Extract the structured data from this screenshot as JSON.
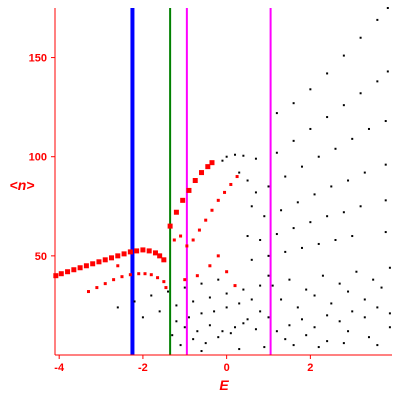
{
  "chart_data": {
    "type": "scatter",
    "xlabel": "E",
    "ylabel": "<n>",
    "xlim": [
      -4.1,
      3.95
    ],
    "ylim": [
      0,
      175
    ],
    "xticks": [
      -4,
      -2,
      0,
      2
    ],
    "yticks": [
      50,
      100,
      150
    ],
    "xtick_labels": [
      "-4",
      "-2",
      "0",
      "2"
    ],
    "ytick_labels": [
      "50",
      "100",
      "150"
    ],
    "grid": false,
    "vlines": [
      {
        "x": -2.25,
        "color": "#0000ff",
        "width": "thick"
      },
      {
        "x": -1.35,
        "color": "#008000",
        "width": "thin"
      },
      {
        "x": -0.95,
        "color": "#ff00ff",
        "width": "thin"
      },
      {
        "x": 1.05,
        "color": "#ff00ff",
        "width": "thin"
      }
    ],
    "series": [
      {
        "color": "#ff0000",
        "marker": "large square",
        "points": [
          [
            -4.08,
            40
          ],
          [
            -3.95,
            41
          ],
          [
            -3.8,
            42
          ],
          [
            -3.65,
            43
          ],
          [
            -3.5,
            44
          ],
          [
            -3.35,
            45
          ],
          [
            -3.2,
            46
          ],
          [
            -3.05,
            47
          ],
          [
            -2.9,
            48
          ],
          [
            -2.75,
            49
          ],
          [
            -2.6,
            50
          ],
          [
            -2.45,
            51
          ],
          [
            -2.3,
            52
          ],
          [
            -2.15,
            52.5
          ],
          [
            -2.0,
            53
          ],
          [
            -1.85,
            52.5
          ],
          [
            -1.7,
            51.5
          ],
          [
            -1.6,
            50
          ],
          [
            -1.5,
            48
          ],
          [
            -1.35,
            65
          ],
          [
            -1.2,
            72
          ],
          [
            -1.05,
            78
          ],
          [
            -0.9,
            83
          ],
          [
            -0.75,
            88
          ],
          [
            -0.6,
            92
          ],
          [
            -0.45,
            95
          ],
          [
            -0.35,
            97
          ]
        ]
      },
      {
        "color": "#ff0000",
        "marker": "small square",
        "points": [
          [
            -3.3,
            32
          ],
          [
            -3.1,
            34
          ],
          [
            -2.9,
            36
          ],
          [
            -2.7,
            38
          ],
          [
            -2.5,
            39.5
          ],
          [
            -2.3,
            40.5
          ],
          [
            -2.1,
            41
          ],
          [
            -1.95,
            41
          ],
          [
            -1.8,
            40.5
          ],
          [
            -1.65,
            39
          ],
          [
            -1.5,
            37
          ],
          [
            -1.25,
            58
          ],
          [
            -1.1,
            60
          ],
          [
            -0.95,
            55
          ],
          [
            -0.8,
            58
          ],
          [
            -0.65,
            63
          ],
          [
            -0.5,
            68
          ],
          [
            -0.35,
            73
          ],
          [
            -0.2,
            78
          ],
          [
            -0.05,
            82
          ],
          [
            0.1,
            86
          ],
          [
            0.25,
            90
          ],
          [
            -1.0,
            38
          ],
          [
            -0.7,
            40
          ],
          [
            -0.4,
            45
          ],
          [
            -0.2,
            50
          ],
          [
            0.0,
            42
          ],
          [
            0.2,
            35
          ],
          [
            -1.45,
            34
          ],
          [
            -2.6,
            45
          ]
        ]
      },
      {
        "color": "#000000",
        "marker": "dot",
        "points": [
          [
            1.2,
            122
          ],
          [
            1.6,
            127
          ],
          [
            2.0,
            134
          ],
          [
            2.4,
            142
          ],
          [
            2.8,
            151
          ],
          [
            3.2,
            160
          ],
          [
            3.6,
            169
          ],
          [
            3.85,
            175
          ],
          [
            1.2,
            102
          ],
          [
            1.6,
            108
          ],
          [
            2.0,
            114
          ],
          [
            2.4,
            120
          ],
          [
            2.8,
            126
          ],
          [
            3.2,
            132
          ],
          [
            3.6,
            138
          ],
          [
            3.85,
            143
          ],
          [
            1.0,
            85
          ],
          [
            1.4,
            90
          ],
          [
            1.8,
            95
          ],
          [
            2.2,
            100
          ],
          [
            2.6,
            104
          ],
          [
            3.0,
            109
          ],
          [
            3.4,
            114
          ],
          [
            3.8,
            118
          ],
          [
            0.9,
            70
          ],
          [
            1.3,
            73
          ],
          [
            1.7,
            77
          ],
          [
            2.1,
            81
          ],
          [
            2.5,
            85
          ],
          [
            2.9,
            88
          ],
          [
            3.3,
            92
          ],
          [
            3.8,
            96
          ],
          [
            0.8,
            58
          ],
          [
            1.2,
            61
          ],
          [
            1.6,
            64
          ],
          [
            2.0,
            67
          ],
          [
            2.4,
            70
          ],
          [
            2.8,
            72
          ],
          [
            3.2,
            75
          ],
          [
            3.8,
            78
          ],
          [
            0.6,
            48
          ],
          [
            1.0,
            50
          ],
          [
            1.4,
            52
          ],
          [
            1.8,
            54
          ],
          [
            2.2,
            56
          ],
          [
            2.6,
            58
          ],
          [
            3.0,
            60
          ],
          [
            3.8,
            62
          ],
          [
            0.0,
            100
          ],
          [
            0.2,
            101
          ],
          [
            0.4,
            100.5
          ],
          [
            0.7,
            99
          ],
          [
            -0.1,
            98
          ],
          [
            -2.6,
            24
          ],
          [
            -2.2,
            27
          ],
          [
            -1.8,
            30
          ],
          [
            -1.4,
            32
          ],
          [
            -1.0,
            34
          ],
          [
            -0.6,
            36
          ],
          [
            -0.2,
            38
          ],
          [
            -2.0,
            19
          ],
          [
            -1.6,
            22
          ],
          [
            -1.2,
            25
          ],
          [
            -0.8,
            27
          ],
          [
            -0.4,
            29
          ],
          [
            0.0,
            31
          ],
          [
            0.4,
            33
          ],
          [
            -1.2,
            17
          ],
          [
            -0.9,
            19
          ],
          [
            -0.6,
            21
          ],
          [
            -0.3,
            22
          ],
          [
            0.0,
            24
          ],
          [
            0.3,
            26
          ],
          [
            0.6,
            28
          ],
          [
            -1.0,
            14
          ],
          [
            -0.7,
            12
          ],
          [
            -0.4,
            15
          ],
          [
            -0.1,
            12
          ],
          [
            0.2,
            14
          ],
          [
            0.5,
            18
          ],
          [
            0.8,
            22
          ],
          [
            -0.8,
            8
          ],
          [
            -0.5,
            6
          ],
          [
            -0.2,
            9
          ],
          [
            0.1,
            11
          ],
          [
            0.4,
            16
          ],
          [
            0.7,
            13
          ],
          [
            1.0,
            19
          ],
          [
            1.2,
            12
          ],
          [
            1.5,
            15
          ],
          [
            1.8,
            18
          ],
          [
            2.1,
            14
          ],
          [
            2.4,
            20
          ],
          [
            2.7,
            17
          ],
          [
            3.0,
            22
          ],
          [
            3.3,
            19
          ],
          [
            3.6,
            24
          ],
          [
            3.9,
            21
          ],
          [
            1.3,
            28
          ],
          [
            1.7,
            24
          ],
          [
            2.1,
            30
          ],
          [
            2.5,
            26
          ],
          [
            2.9,
            32
          ],
          [
            3.3,
            28
          ],
          [
            3.7,
            34
          ],
          [
            1.1,
            35
          ],
          [
            1.5,
            38
          ],
          [
            1.9,
            33
          ],
          [
            2.3,
            40
          ],
          [
            2.7,
            36
          ],
          [
            3.1,
            42
          ],
          [
            3.5,
            38
          ],
          [
            3.9,
            44
          ],
          [
            1.4,
            8
          ],
          [
            1.9,
            10
          ],
          [
            2.4,
            7
          ],
          [
            2.9,
            12
          ],
          [
            3.4,
            9
          ],
          [
            3.9,
            14
          ],
          [
            1.6,
            5
          ],
          [
            2.2,
            4
          ],
          [
            2.8,
            6
          ],
          [
            3.6,
            5
          ],
          [
            0.3,
            3
          ],
          [
            -0.6,
            2
          ],
          [
            0.9,
            4
          ],
          [
            -1.3,
            10
          ],
          [
            -1.1,
            5
          ],
          [
            0.5,
            60
          ],
          [
            0.6,
            75
          ],
          [
            0.3,
            92
          ],
          [
            0.5,
            88
          ],
          [
            0.7,
            82
          ],
          [
            1.0,
            40
          ],
          [
            0.8,
            35
          ]
        ]
      }
    ]
  }
}
